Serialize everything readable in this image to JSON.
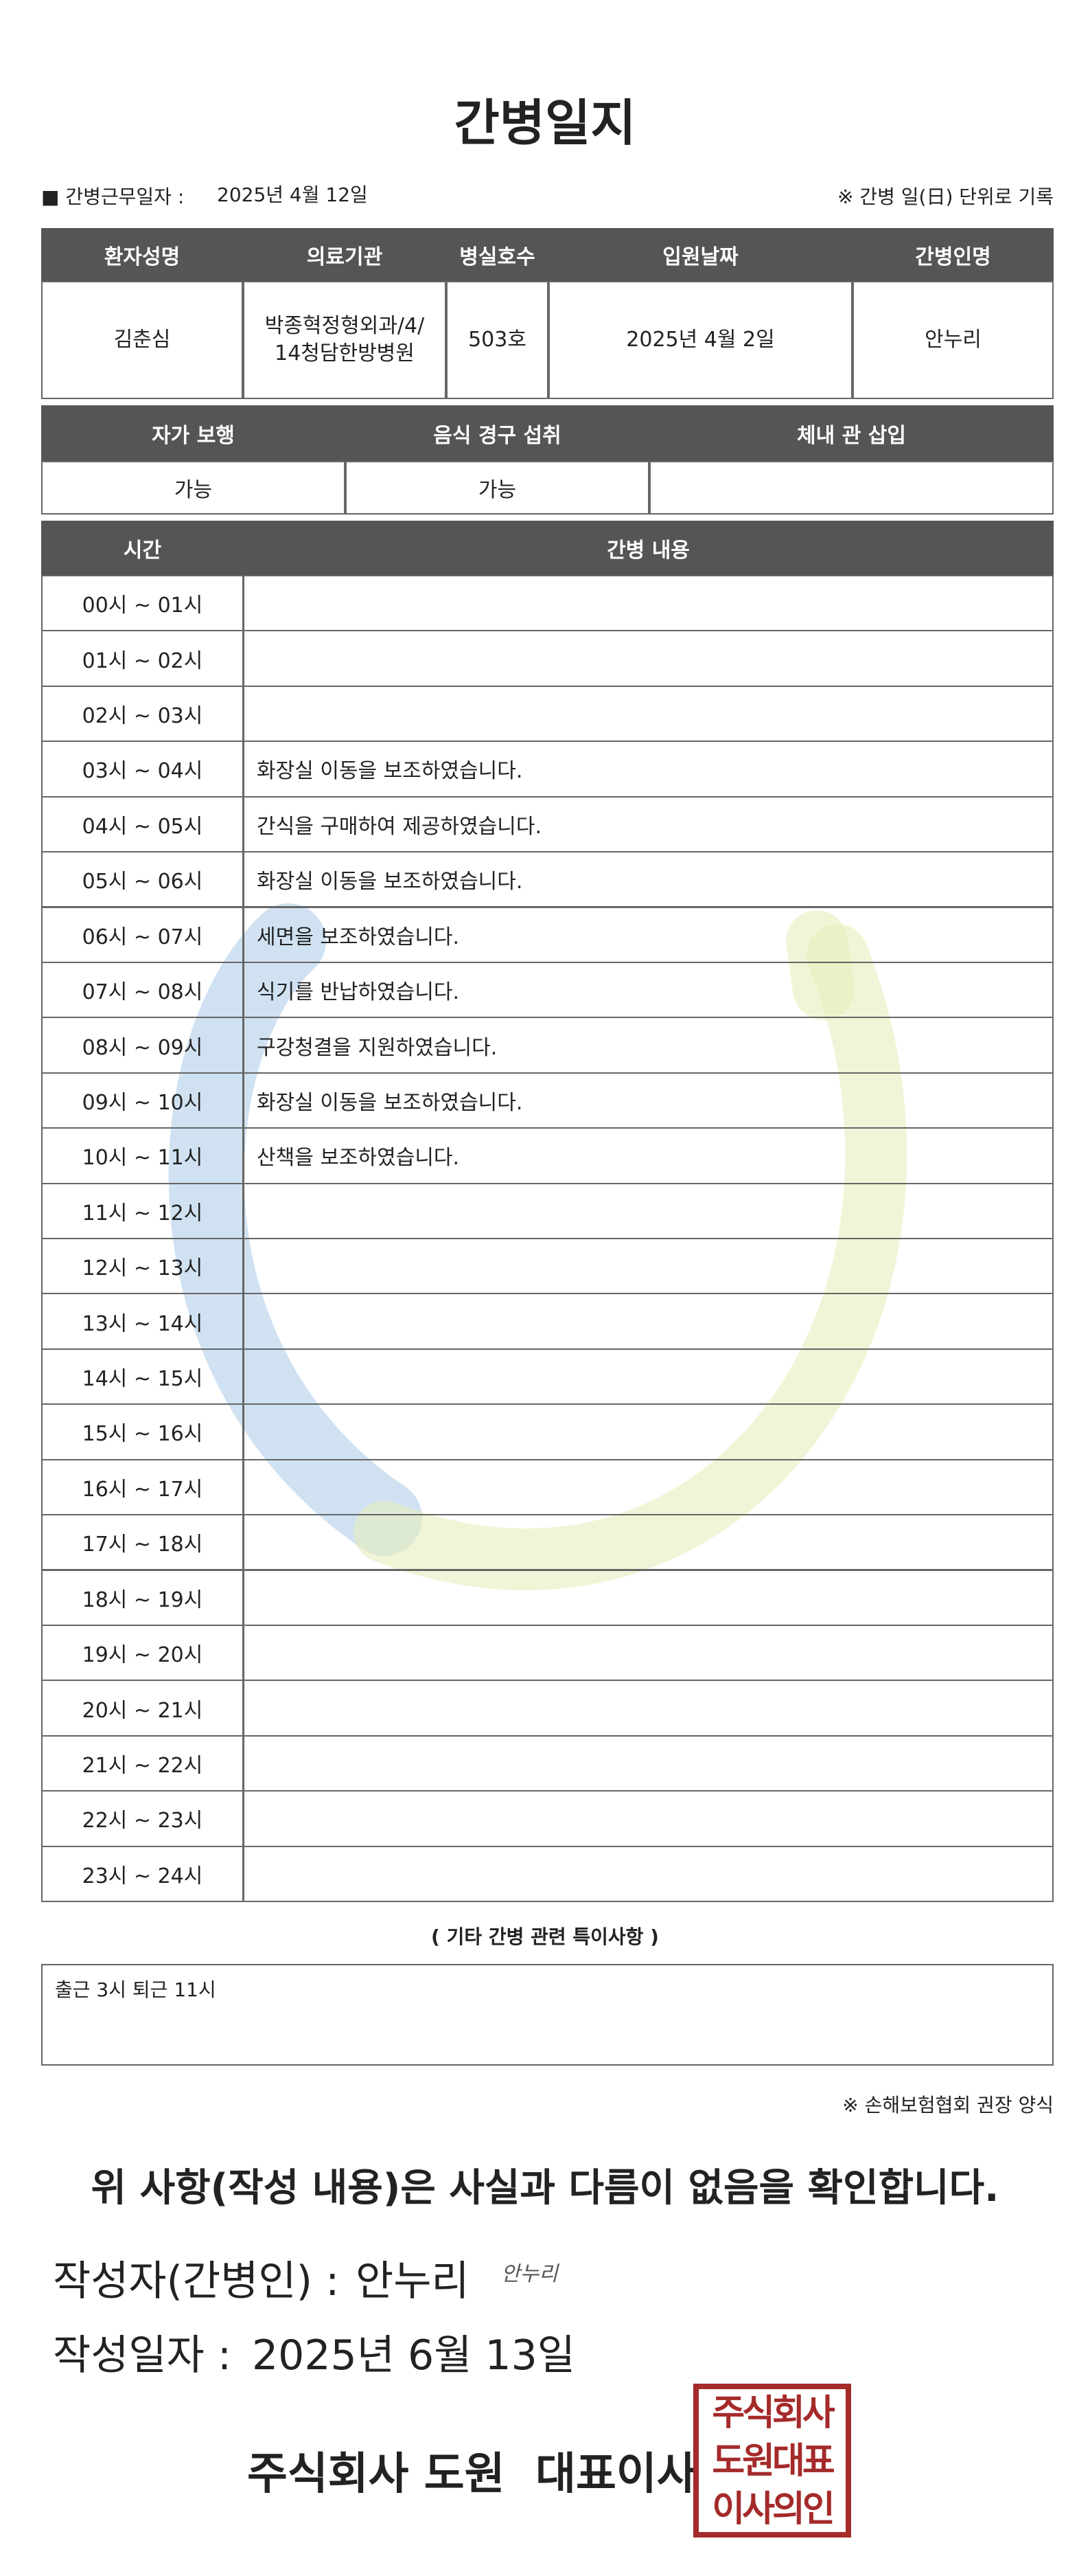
{
  "header": {
    "title": "간병일지",
    "work_date_label": "■ 간병근무일자 :",
    "work_date": "2025년 4월 12일",
    "note": "※ 간병 일(日) 단위로 기록"
  },
  "patient_table": {
    "headers": [
      "환자성명",
      "의료기관",
      "병실호수",
      "입원날짜",
      "간병인명"
    ],
    "row": [
      "김춘심",
      "박종혁정형외과/4/14청담한방병원",
      "503호",
      "2025년 4월 2일",
      "안누리"
    ]
  },
  "status_table": {
    "headers": [
      "자가 보행",
      "음식 경구 섭취",
      "체내 관 삽입"
    ],
    "row": [
      "가능",
      "가능"
    ]
  },
  "care_log": {
    "headers": [
      "시간",
      "간병 내용"
    ],
    "rows": [
      {
        "time": "00시 ~ 01시"
      },
      {
        "time": "01시 ~ 02시"
      },
      {
        "time": "02시 ~ 03시"
      },
      {
        "time": "03시 ~ 04시",
        "content": "화장실 이동을 보조하였습니다."
      },
      {
        "time": "04시 ~ 05시",
        "content": "간식을 구매하여 제공하였습니다."
      },
      {
        "time": "05시 ~ 06시",
        "content": "화장실 이동을 보조하였습니다."
      },
      {
        "time": "06시 ~ 07시",
        "content": "세면을 보조하였습니다."
      },
      {
        "time": "07시 ~ 08시",
        "content": "식기를 반납하였습니다."
      },
      {
        "time": "08시 ~ 09시",
        "content": "구강청결을 지원하였습니다."
      },
      {
        "time": "09시 ~ 10시",
        "content": "화장실 이동을 보조하였습니다."
      },
      {
        "time": "10시 ~ 11시",
        "content": "산책을 보조하였습니다."
      },
      {
        "time": "11시 ~ 12시"
      },
      {
        "time": "12시 ~ 13시"
      },
      {
        "time": "13시 ~ 14시"
      },
      {
        "time": "14시 ~ 15시"
      },
      {
        "time": "15시 ~ 16시"
      },
      {
        "time": "16시 ~ 17시"
      },
      {
        "time": "17시 ~ 18시"
      },
      {
        "time": "18시 ~ 19시"
      },
      {
        "time": "19시 ~ 20시"
      },
      {
        "time": "20시 ~ 21시"
      },
      {
        "time": "21시 ~ 22시"
      },
      {
        "time": "22시 ~ 23시"
      },
      {
        "time": "23시 ~ 24시"
      }
    ]
  },
  "remarks": {
    "title": "( 기타 간병 관련 특이사항 )",
    "text": "출근 3시 퇴근 11시"
  },
  "form_note": "※ 손해보험협회 권장 양식",
  "confirmation": {
    "statement": "위 사항(작성 내용)은 사실과 다름이 없음을 확인합니다.",
    "author_label": "작성자(간병인) :",
    "author": "안누리",
    "signature": "안누리",
    "date_label": "작성일자 :",
    "date": "2025년 6월 13일",
    "company": "주식회사 도원  대표이사",
    "seal": [
      "주식회사",
      "도원대표",
      "이사의인"
    ]
  }
}
